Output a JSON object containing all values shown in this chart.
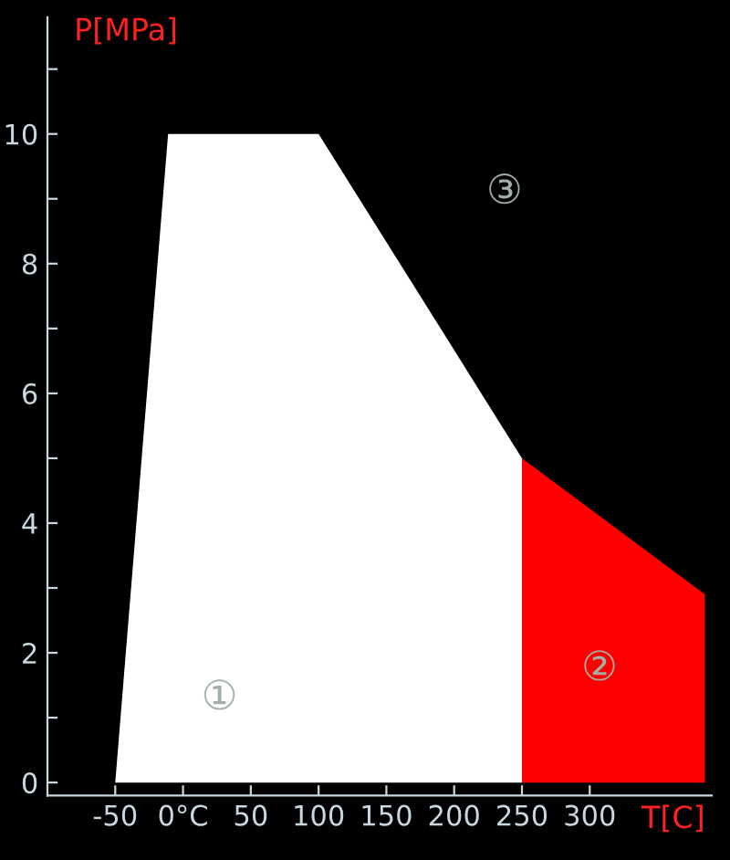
{
  "chart_data": {
    "type": "area",
    "xlabel": "T[C]",
    "ylabel": "P[MPa]",
    "xlim": [
      -100,
      390
    ],
    "ylim": [
      -0.2,
      11.8
    ],
    "xticks": [
      -50,
      {
        "value": 0,
        "label": "0°C"
      },
      50,
      100,
      150,
      200,
      250,
      300
    ],
    "yticks": [
      0,
      {
        "value": 1,
        "label": null
      },
      2,
      {
        "value": 3,
        "label": null
      },
      4,
      {
        "value": 5,
        "label": null
      },
      6,
      {
        "value": 7,
        "label": null
      },
      8,
      {
        "value": 9,
        "label": null
      },
      10,
      {
        "value": 11,
        "label": null
      }
    ],
    "series": [
      {
        "x": [
          -50,
          -11,
          100,
          250,
          250
        ],
        "values": [
          0,
          10,
          10,
          5,
          0
        ],
        "color": "#ffffff"
      },
      {
        "x": [
          250,
          385
        ],
        "values": [
          5,
          2.9
        ],
        "color": "#ff0000"
      }
    ],
    "annotations": [
      "①",
      "②",
      "③"
    ],
    "grid": false,
    "legend": false
  }
}
